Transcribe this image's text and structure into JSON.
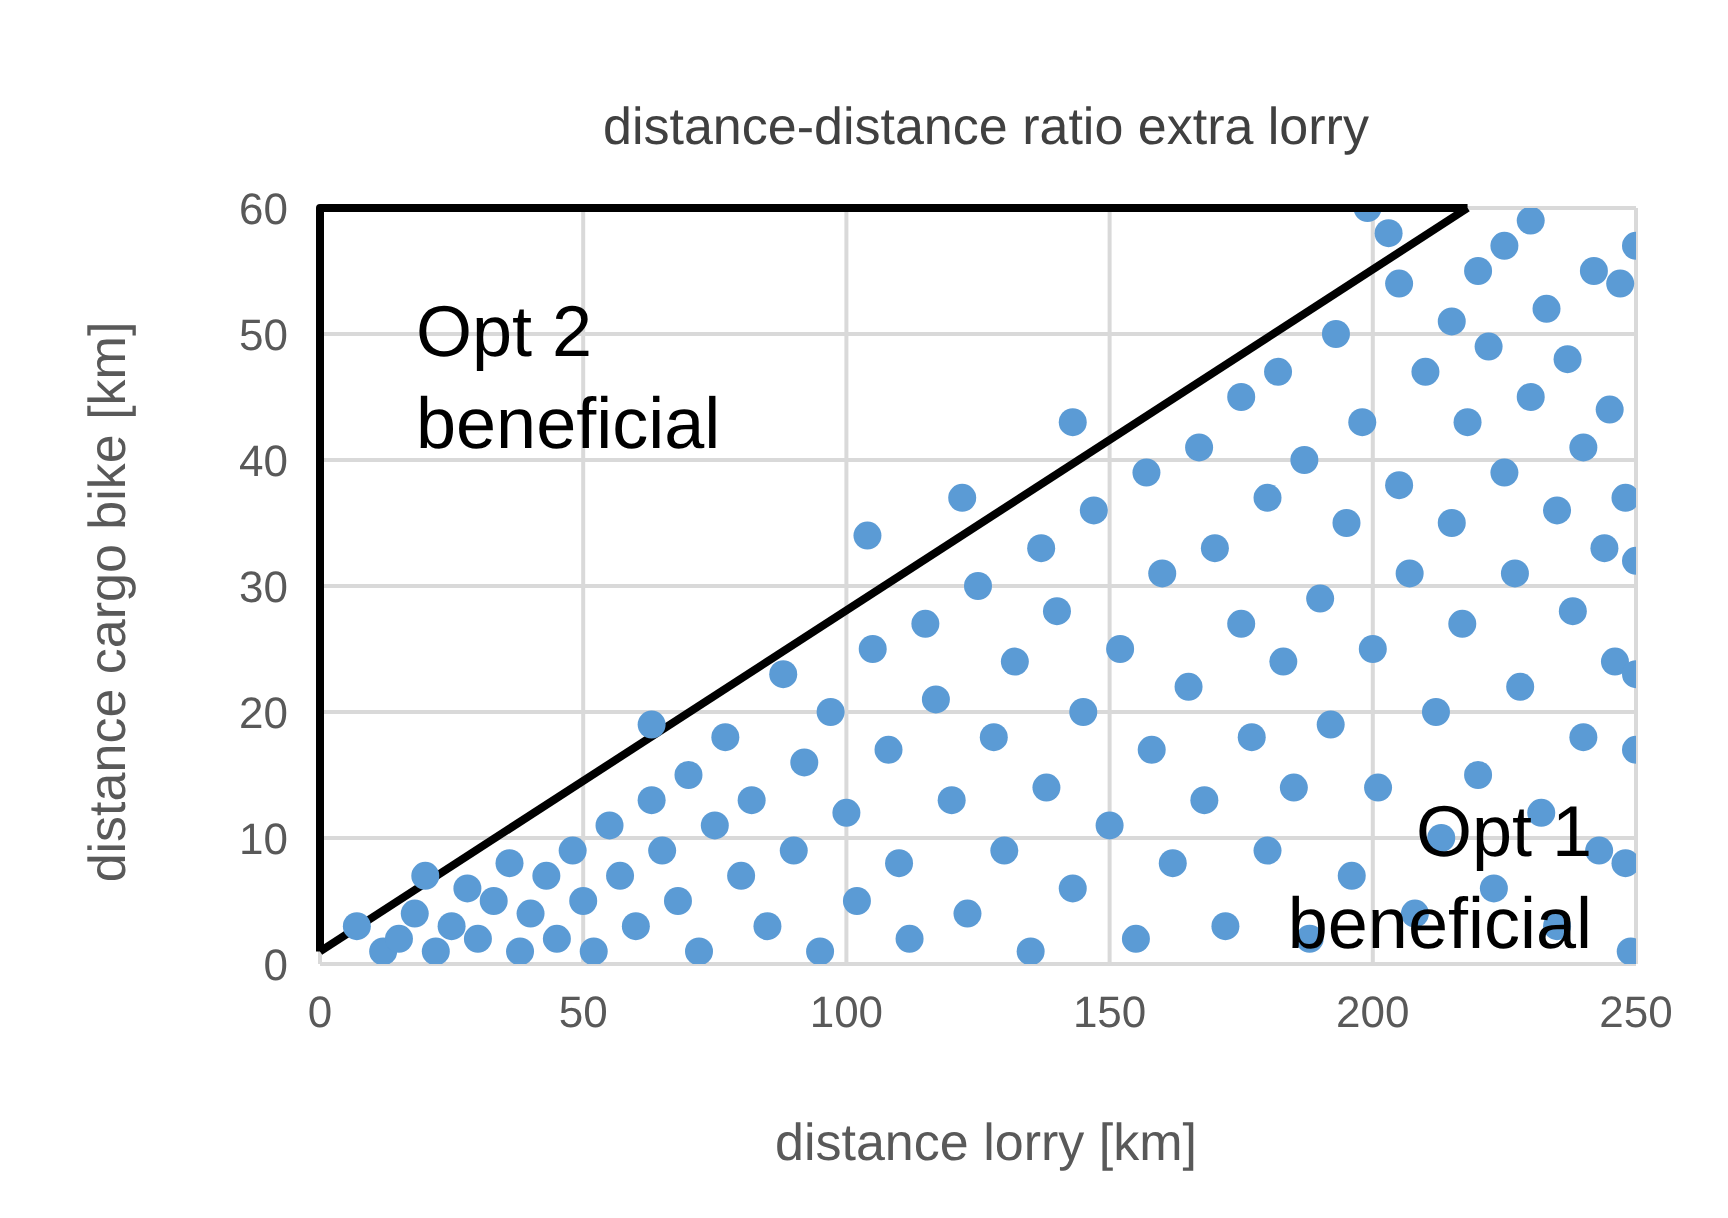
{
  "chart_data": {
    "type": "scatter",
    "title": "distance-distance ratio extra lorry",
    "xlabel": "distance lorry [km]",
    "ylabel": "distance cargo bike [km]",
    "xlim": [
      0,
      250
    ],
    "xticks": [
      0,
      50,
      100,
      150,
      200,
      250
    ],
    "ylim": [
      0,
      60
    ],
    "yticks": [
      0,
      10,
      20,
      30,
      40,
      50,
      60
    ],
    "grid": true,
    "annotations": [
      "Opt 2 beneficial",
      "Opt 1 beneficial"
    ],
    "series": [
      {
        "color": "#5b9bd5",
        "marker": "circle",
        "x": [
          7,
          12,
          15,
          18,
          20,
          22,
          25,
          28,
          30,
          33,
          36,
          38,
          40,
          43,
          45,
          48,
          50,
          52,
          55,
          57,
          60,
          63,
          63,
          65,
          68,
          70,
          72,
          75,
          77,
          80,
          82,
          85,
          88,
          90,
          92,
          95,
          97,
          100,
          102,
          104,
          105,
          108,
          110,
          112,
          115,
          117,
          120,
          122,
          123,
          125,
          128,
          130,
          132,
          135,
          137,
          138,
          140,
          143,
          143,
          145,
          147,
          150,
          152,
          155,
          157,
          158,
          160,
          162,
          165,
          167,
          168,
          170,
          172,
          175,
          175,
          177,
          180,
          180,
          182,
          183,
          185,
          187,
          188,
          190,
          192,
          193,
          195,
          196,
          198,
          199,
          200,
          201,
          203,
          205,
          205,
          207,
          208,
          210,
          212,
          213,
          215,
          215,
          217,
          218,
          220,
          220,
          222,
          223,
          225,
          225,
          227,
          228,
          230,
          230,
          232,
          233,
          235,
          235,
          237,
          238,
          240,
          240,
          242,
          243,
          244,
          245,
          246,
          247,
          248,
          249,
          250,
          250,
          250,
          250,
          248
        ],
        "values": [
          3,
          1,
          2,
          4,
          7,
          1,
          3,
          6,
          2,
          5,
          8,
          1,
          4,
          7,
          2,
          9,
          5,
          1,
          11,
          7,
          3,
          19,
          13,
          9,
          5,
          15,
          1,
          11,
          18,
          7,
          13,
          3,
          23,
          9,
          16,
          1,
          20,
          12,
          5,
          34,
          25,
          17,
          8,
          2,
          27,
          21,
          13,
          37,
          4,
          30,
          18,
          9,
          24,
          1,
          33,
          14,
          28,
          43,
          6,
          20,
          36,
          11,
          25,
          2,
          39,
          17,
          31,
          8,
          22,
          41,
          13,
          33,
          3,
          45,
          27,
          18,
          37,
          9,
          47,
          24,
          14,
          40,
          2,
          29,
          19,
          50,
          35,
          7,
          43,
          60,
          25,
          14,
          58,
          54,
          38,
          31,
          4,
          47,
          20,
          10,
          51,
          35,
          27,
          43,
          55,
          15,
          49,
          6,
          57,
          39,
          31,
          22,
          59,
          45,
          12,
          52,
          36,
          3,
          48,
          28,
          41,
          18,
          55,
          9,
          33,
          44,
          24,
          54,
          37,
          1,
          57,
          32,
          17,
          23,
          8
        ]
      },
      {
        "type": "line",
        "color": "#000000",
        "marker": "none",
        "line_style": "solid",
        "x": [
          0,
          218
        ],
        "values": [
          1,
          60
        ]
      }
    ]
  }
}
